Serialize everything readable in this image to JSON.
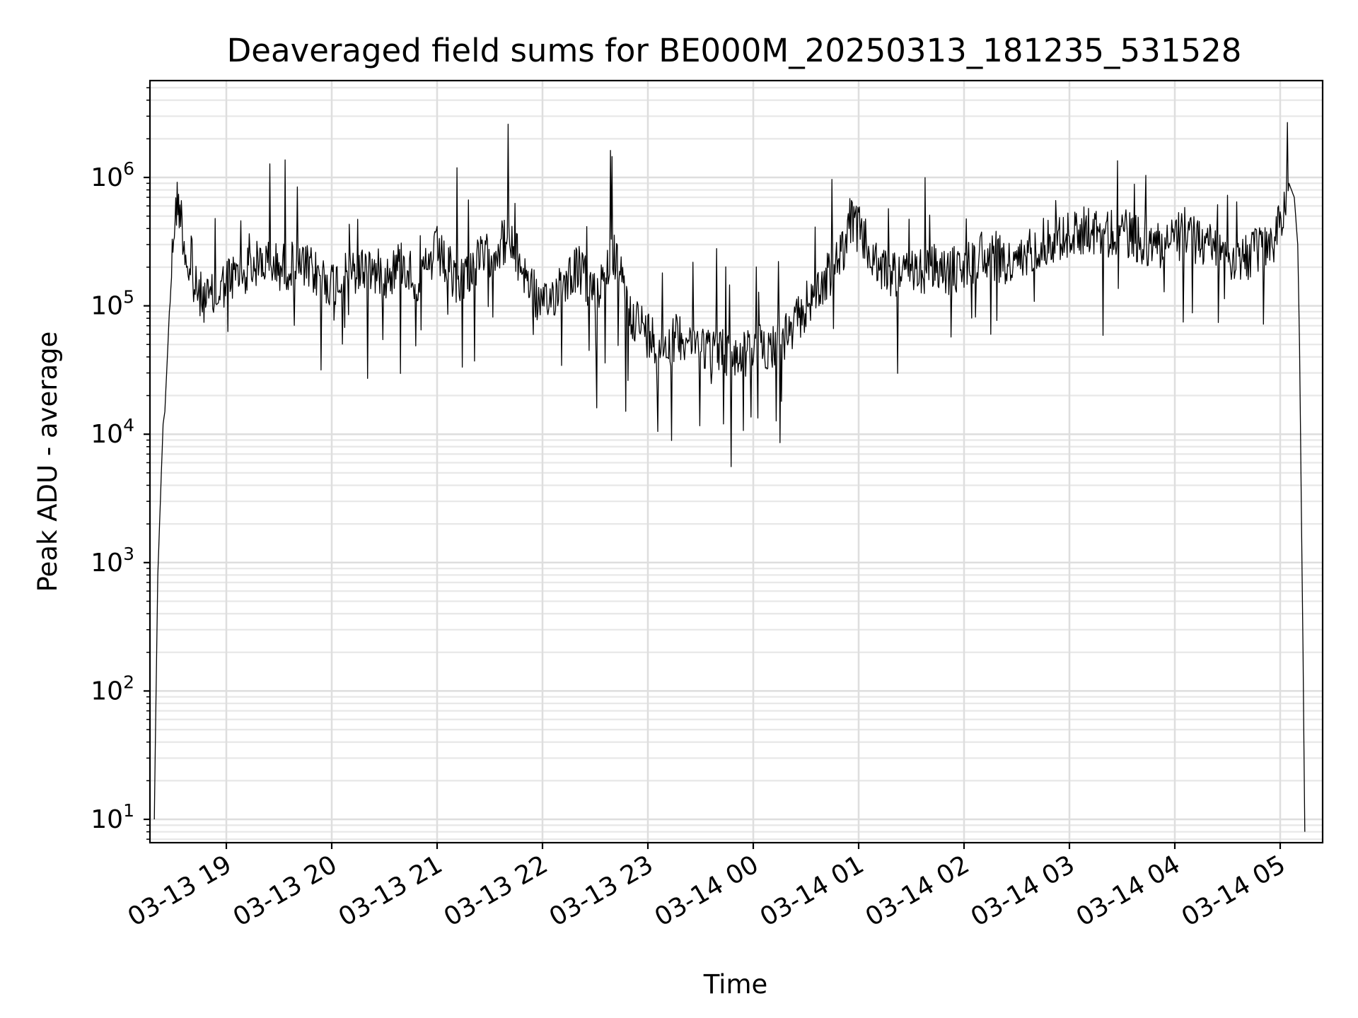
{
  "chart_data": {
    "type": "line",
    "title": "Deaveraged field sums for BE000M_20250313_181235_531528",
    "xlabel": "Time",
    "ylabel": "Peak ADU - average",
    "yscale": "log",
    "ylim": [
      6.5,
      5500000
    ],
    "y_ticks": [
      {
        "value": 10,
        "base": "10",
        "exp": "1"
      },
      {
        "value": 100,
        "base": "10",
        "exp": "2"
      },
      {
        "value": 1000,
        "base": "10",
        "exp": "3"
      },
      {
        "value": 10000,
        "base": "10",
        "exp": "4"
      },
      {
        "value": 100000,
        "base": "10",
        "exp": "5"
      },
      {
        "value": 1000000,
        "base": "10",
        "exp": "6"
      }
    ],
    "x_range": [
      "2025-03-13 18:17",
      "2025-03-14 05:27"
    ],
    "x_ticks": [
      {
        "time": "2025-03-13 19:00",
        "label": "03-13 19"
      },
      {
        "time": "2025-03-13 20:00",
        "label": "03-13 20"
      },
      {
        "time": "2025-03-13 21:00",
        "label": "03-13 21"
      },
      {
        "time": "2025-03-13 22:00",
        "label": "03-13 22"
      },
      {
        "time": "2025-03-13 23:00",
        "label": "03-13 23"
      },
      {
        "time": "2025-03-14 00:00",
        "label": "03-14 00"
      },
      {
        "time": "2025-03-14 01:00",
        "label": "03-14 01"
      },
      {
        "time": "2025-03-14 02:00",
        "label": "03-14 02"
      },
      {
        "time": "2025-03-14 03:00",
        "label": "03-14 03"
      },
      {
        "time": "2025-03-14 04:00",
        "label": "03-14 04"
      },
      {
        "time": "2025-03-14 05:00",
        "label": "03-14 05"
      }
    ],
    "grid": true,
    "line_color": "#000000",
    "series": [
      {
        "x": [
          "2025-03-13 18:19",
          "2025-03-13 18:20",
          "2025-03-13 18:21",
          "2025-03-13 18:22",
          "2025-03-13 18:23",
          "2025-03-13 18:24",
          "2025-03-13 18:25",
          "2025-03-13 18:26",
          "2025-03-13 18:28",
          "2025-03-13 18:30",
          "2025-03-13 18:32",
          "2025-03-13 18:34",
          "2025-03-13 18:36",
          "2025-03-13 18:40",
          "2025-03-13 18:45",
          "2025-03-13 18:50",
          "2025-03-13 18:55",
          "2025-03-13 19:00",
          "2025-03-13 19:10",
          "2025-03-13 19:20",
          "2025-03-13 19:30",
          "2025-03-13 19:40",
          "2025-03-13 19:50",
          "2025-03-13 20:00",
          "2025-03-13 20:10",
          "2025-03-13 20:20",
          "2025-03-13 20:30",
          "2025-03-13 20:40",
          "2025-03-13 20:50",
          "2025-03-13 21:00",
          "2025-03-13 21:10",
          "2025-03-13 21:20",
          "2025-03-13 21:30",
          "2025-03-13 21:40",
          "2025-03-13 21:50",
          "2025-03-13 22:00",
          "2025-03-13 22:10",
          "2025-03-13 22:20",
          "2025-03-13 22:30",
          "2025-03-13 22:40",
          "2025-03-13 22:50",
          "2025-03-13 23:00",
          "2025-03-13 23:10",
          "2025-03-13 23:20",
          "2025-03-13 23:30",
          "2025-03-13 23:40",
          "2025-03-13 23:50",
          "2025-03-14 00:00",
          "2025-03-14 00:10",
          "2025-03-14 00:20",
          "2025-03-14 00:30",
          "2025-03-14 00:40",
          "2025-03-14 00:50",
          "2025-03-14 00:55",
          "2025-03-14 01:00",
          "2025-03-14 01:10",
          "2025-03-14 01:20",
          "2025-03-14 01:30",
          "2025-03-14 01:40",
          "2025-03-14 01:50",
          "2025-03-14 02:00",
          "2025-03-14 02:10",
          "2025-03-14 02:20",
          "2025-03-14 02:30",
          "2025-03-14 02:40",
          "2025-03-14 02:50",
          "2025-03-14 03:00",
          "2025-03-14 03:10",
          "2025-03-14 03:20",
          "2025-03-14 03:30",
          "2025-03-14 03:40",
          "2025-03-14 03:50",
          "2025-03-14 04:00",
          "2025-03-14 04:10",
          "2025-03-14 04:20",
          "2025-03-14 04:30",
          "2025-03-14 04:40",
          "2025-03-14 04:50",
          "2025-03-14 04:55",
          "2025-03-14 05:00",
          "2025-03-14 05:05",
          "2025-03-14 05:08",
          "2025-03-14 05:10",
          "2025-03-14 05:11",
          "2025-03-14 05:12",
          "2025-03-14 05:13",
          "2025-03-14 05:14"
        ],
        "y": [
          10,
          100,
          800,
          2000,
          5000,
          12000,
          15000,
          30000,
          120000,
          400000,
          650000,
          550000,
          300000,
          150000,
          120000,
          110000,
          120000,
          160000,
          180000,
          220000,
          200000,
          210000,
          180000,
          150000,
          170000,
          200000,
          170000,
          220000,
          150000,
          270000,
          150000,
          200000,
          260000,
          330000,
          180000,
          90000,
          150000,
          200000,
          120000,
          260000,
          90000,
          60000,
          50000,
          60000,
          50000,
          45000,
          40000,
          45000,
          50000,
          55000,
          100000,
          150000,
          250000,
          450000,
          400000,
          200000,
          180000,
          170000,
          200000,
          180000,
          200000,
          260000,
          230000,
          200000,
          300000,
          330000,
          350000,
          400000,
          350000,
          380000,
          320000,
          300000,
          350000,
          330000,
          300000,
          250000,
          230000,
          280000,
          300000,
          450000,
          900000,
          700000,
          300000,
          50000,
          3000,
          200,
          8
        ]
      }
    ]
  }
}
